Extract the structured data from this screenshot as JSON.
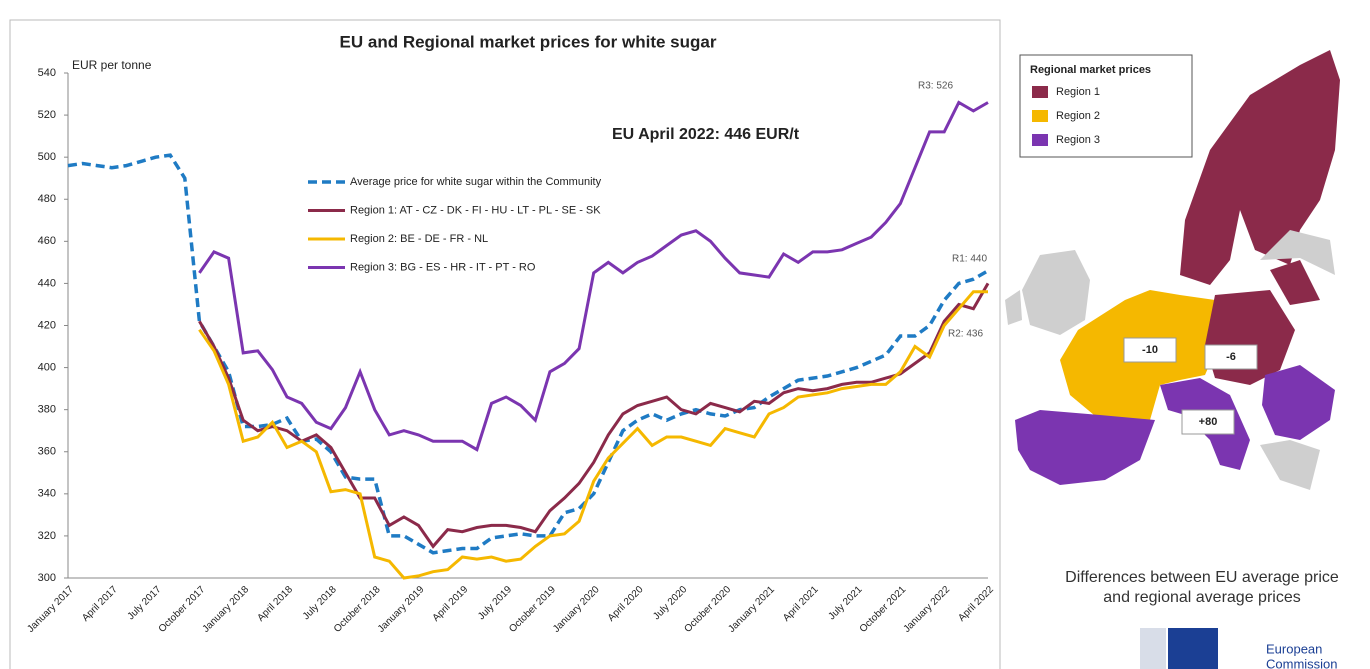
{
  "chart_data": {
    "type": "line",
    "title": "EU and Regional market prices for white sugar",
    "y_label": "EUR per tonne",
    "annotations": [
      "EU April 2022: 446 EUR/t",
      "R3: 526",
      "R1: 440",
      "R2: 436"
    ],
    "categories": [
      "January 2017",
      null,
      null,
      "April 2017",
      null,
      null,
      "July 2017",
      null,
      null,
      "October 2017",
      null,
      null,
      "January 2018",
      null,
      null,
      "April 2018",
      null,
      null,
      "July 2018",
      null,
      null,
      "October 2018",
      null,
      null,
      "January 2019",
      null,
      null,
      "April 2019",
      null,
      null,
      "July 2019",
      null,
      null,
      "October 2019",
      null,
      null,
      "January 2020",
      null,
      null,
      "April 2020",
      null,
      null,
      "July 2020",
      null,
      null,
      "October 2020",
      null,
      null,
      "January 2021",
      null,
      null,
      "April 2021",
      null,
      null,
      "July 2021",
      null,
      null,
      "October 2021",
      null,
      null,
      "January 2022",
      null,
      null,
      "April 2022"
    ],
    "series": [
      {
        "name": "Average price for white sugar within the Community",
        "color": "#1f7bc4",
        "dashed": true,
        "values": [
          496,
          497,
          496,
          495,
          496,
          498,
          500,
          501,
          490,
          422,
          410,
          398,
          372,
          372,
          373,
          376,
          365,
          366,
          360,
          348,
          347,
          347,
          320,
          320,
          316,
          312,
          313,
          314,
          314,
          319,
          320,
          321,
          320,
          320,
          331,
          333,
          340,
          355,
          370,
          375,
          378,
          375,
          378,
          380,
          378,
          377,
          380,
          381,
          386,
          390,
          394,
          395,
          396,
          398,
          400,
          403,
          406,
          415,
          415,
          420,
          432,
          440,
          442,
          446
        ]
      },
      {
        "name": "Region 1: AT - CZ - DK - FI - HU - LT - PL - SE - SK",
        "color": "#8b2a4a",
        "dashed": false,
        "values": [
          null,
          null,
          null,
          null,
          null,
          null,
          null,
          null,
          null,
          422,
          410,
          395,
          375,
          370,
          372,
          370,
          365,
          368,
          362,
          350,
          338,
          338,
          325,
          329,
          325,
          315,
          323,
          322,
          324,
          325,
          325,
          324,
          322,
          332,
          338,
          345,
          355,
          368,
          378,
          382,
          384,
          386,
          380,
          378,
          383,
          381,
          379,
          384,
          383,
          388,
          390,
          389,
          390,
          392,
          393,
          393,
          395,
          397,
          402,
          407,
          422,
          430,
          428,
          440
        ]
      },
      {
        "name": "Region 2: BE - DE - FR -  NL",
        "color": "#f5b800",
        "dashed": false,
        "values": [
          null,
          null,
          null,
          null,
          null,
          null,
          null,
          null,
          null,
          418,
          408,
          392,
          365,
          367,
          374,
          362,
          365,
          360,
          341,
          342,
          340,
          310,
          308,
          300,
          301,
          303,
          304,
          310,
          309,
          310,
          308,
          309,
          315,
          320,
          321,
          327,
          346,
          357,
          364,
          371,
          363,
          367,
          367,
          365,
          363,
          371,
          369,
          367,
          378,
          381,
          386,
          387,
          388,
          390,
          391,
          392,
          392,
          398,
          410,
          405,
          420,
          428,
          436,
          436
        ]
      },
      {
        "name": "Region 3: BG - ES - HR - IT - PT - RO",
        "color": "#7b35b0",
        "dashed": false,
        "values": [
          null,
          null,
          null,
          null,
          null,
          null,
          null,
          null,
          null,
          445,
          455,
          452,
          407,
          408,
          399,
          386,
          383,
          374,
          371,
          381,
          398,
          380,
          368,
          370,
          368,
          365,
          365,
          365,
          361,
          383,
          386,
          382,
          375,
          398,
          402,
          409,
          445,
          450,
          445,
          450,
          453,
          458,
          463,
          465,
          460,
          452,
          445,
          444,
          443,
          454,
          450,
          455,
          455,
          456,
          459,
          462,
          469,
          478,
          495,
          512,
          512,
          526,
          522,
          526
        ]
      }
    ],
    "ylim": [
      300,
      540
    ],
    "yticks": [
      300,
      320,
      340,
      360,
      380,
      400,
      420,
      440,
      460,
      480,
      500,
      520,
      540
    ],
    "grid": false
  },
  "map": {
    "legend_title": "Regional market prices",
    "legend": [
      {
        "name": "Region 1",
        "color": "#8b2a4a"
      },
      {
        "name": "Region 2",
        "color": "#f5b800"
      },
      {
        "name": "Region 3",
        "color": "#7b35b0"
      }
    ],
    "labels": [
      "-10",
      "-6",
      "+80"
    ],
    "caption": [
      "Differences between EU average price",
      "and regional average prices"
    ],
    "logo": [
      "European",
      "Commission"
    ]
  }
}
